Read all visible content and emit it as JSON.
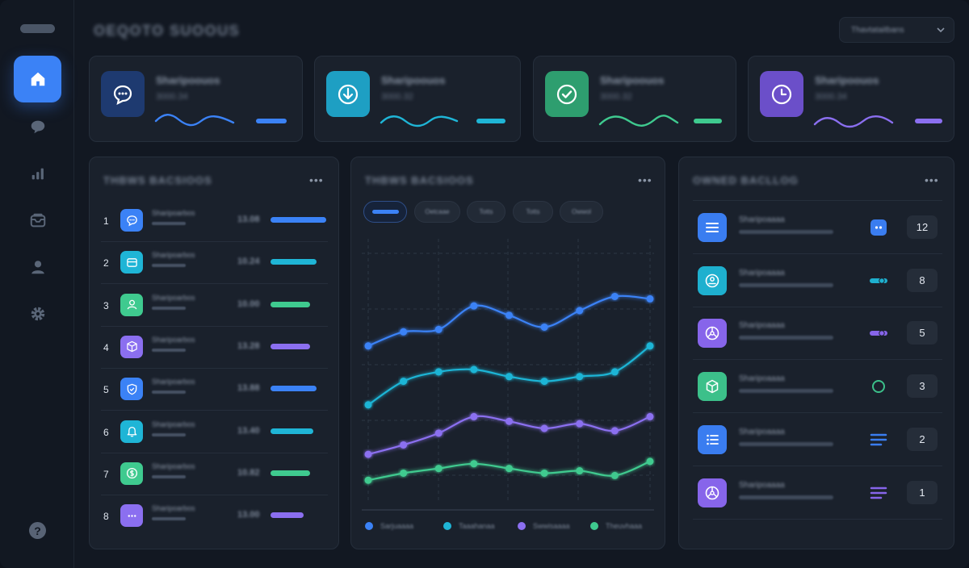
{
  "header": {
    "title": "OEQOTO SUOOUS",
    "select_value": "Thavtataitbans"
  },
  "colors": {
    "blue": "#3b82f6",
    "cyan": "#1fb5d6",
    "green": "#3fca8f",
    "purple": "#8b6ff0",
    "background": "#121822",
    "card": "#1a212c"
  },
  "sidebar": {
    "items": [
      {
        "icon": "home-icon",
        "active": true
      },
      {
        "icon": "chat-icon",
        "active": false
      },
      {
        "icon": "bar-chart-icon",
        "active": false
      },
      {
        "icon": "inbox-icon",
        "active": false
      },
      {
        "icon": "user-icon",
        "active": false
      },
      {
        "icon": "settings-icon",
        "active": false
      }
    ],
    "help_label": "?"
  },
  "stats": [
    {
      "title": "Sharipoouos",
      "sub": "3000.34",
      "icon": "chat-bubble-icon",
      "color": "blue"
    },
    {
      "title": "Sharipoouos",
      "sub": "3000.32",
      "icon": "download-icon",
      "color": "cyan"
    },
    {
      "title": "Sharipoouos",
      "sub": "3000.32",
      "icon": "check-circle-icon",
      "color": "green"
    },
    {
      "title": "Sharipoouos",
      "sub": "3000.34",
      "icon": "clock-icon",
      "color": "purple"
    }
  ],
  "left_panel": {
    "title": "THBWS BACSIOOS",
    "menu": "•••",
    "rows": [
      {
        "num": "1",
        "name": "Sharipoarbos",
        "value": "13.08",
        "icon": "chat-icon",
        "color": "blue",
        "fill": 0.98
      },
      {
        "num": "2",
        "name": "Sharipoarbos",
        "value": "10.24",
        "icon": "card-icon",
        "color": "cyan",
        "fill": 0.82
      },
      {
        "num": "3",
        "name": "Sharipoarbos",
        "value": "10.00",
        "icon": "user-icon",
        "color": "green",
        "fill": 0.7
      },
      {
        "num": "4",
        "name": "Sharipoarbos",
        "value": "13.28",
        "icon": "box-icon",
        "color": "purple",
        "fill": 0.7
      },
      {
        "num": "5",
        "name": "Sharipoarbos",
        "value": "13.88",
        "icon": "shield-icon",
        "color": "blue",
        "fill": 0.82
      },
      {
        "num": "6",
        "name": "Sharipoarbos",
        "value": "13.40",
        "icon": "bell-icon",
        "color": "cyan",
        "fill": 0.76
      },
      {
        "num": "7",
        "name": "Sharipoarbos",
        "value": "10.82",
        "icon": "dollar-icon",
        "color": "green",
        "fill": 0.7
      },
      {
        "num": "8",
        "name": "Sharipoarbos",
        "value": "13.00",
        "icon": "more-icon",
        "color": "purple",
        "fill": 0.58
      }
    ]
  },
  "center_panel": {
    "title": "THBWS BACSIOOS",
    "menu": "•••",
    "filters": [
      "",
      "Oetcaae",
      "Totts",
      "Totts",
      "Owwol"
    ],
    "legend": [
      "Sarjuaaaa",
      "Taaahanaa",
      "Swwisaaaa",
      "Theuvhaaa"
    ]
  },
  "chart_data": {
    "type": "line",
    "x": [
      1,
      2,
      3,
      4,
      5,
      6,
      7,
      8,
      9
    ],
    "ylim": [
      0,
      100
    ],
    "grid": true,
    "series": [
      {
        "values": [
          60,
          66,
          67,
          77,
          73,
          68,
          75,
          81,
          80
        ],
        "color": "blue"
      },
      {
        "values": [
          35,
          45,
          49,
          50,
          47,
          45,
          47,
          49,
          60
        ],
        "color": "cyan"
      },
      {
        "values": [
          14,
          18,
          23,
          30,
          28,
          25,
          27,
          24,
          30
        ],
        "color": "purple"
      },
      {
        "values": [
          3,
          6,
          8,
          10,
          8,
          6,
          7,
          5,
          11
        ],
        "color": "green"
      }
    ]
  },
  "right_panel": {
    "title": "OWNED BACLLOG",
    "menu": "•••",
    "rows": [
      {
        "name": "Sharipoaaaa",
        "count": "12",
        "icon": "list-icon",
        "color": "blue",
        "marker": "pill-dots"
      },
      {
        "name": "Sharipoaaaa",
        "count": "8",
        "icon": "profile-icon",
        "color": "cyan",
        "marker": "toggle"
      },
      {
        "name": "Sharipoaaaa",
        "count": "5",
        "icon": "steering-icon",
        "color": "purple",
        "marker": "toggle"
      },
      {
        "name": "Sharipoaaaa",
        "count": "3",
        "icon": "cube-icon",
        "color": "green",
        "marker": "ring"
      },
      {
        "name": "Sharipoaaaa",
        "count": "2",
        "icon": "bullets-icon",
        "color": "blue",
        "marker": "lines"
      },
      {
        "name": "Sharipoaaaa",
        "count": "1",
        "icon": "steering-icon",
        "color": "purple",
        "marker": "lines"
      }
    ]
  }
}
